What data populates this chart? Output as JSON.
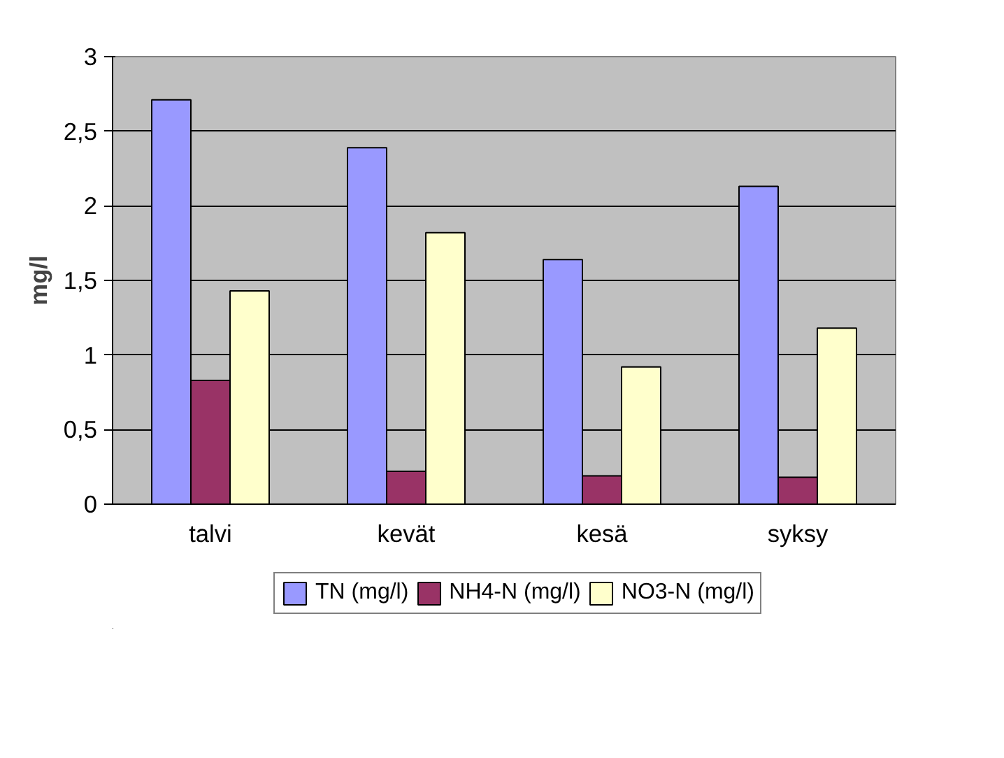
{
  "chart_data": {
    "type": "bar",
    "ylabel": "mg/l",
    "categories": [
      "talvi",
      "kevät",
      "kesä",
      "syksy"
    ],
    "series": [
      {
        "name": "TN (mg/l)",
        "color": "#9999ff",
        "values": [
          2.71,
          2.39,
          1.64,
          2.13
        ]
      },
      {
        "name": "NH4-N (mg/l)",
        "color": "#993366",
        "values": [
          0.83,
          0.22,
          0.19,
          0.18
        ]
      },
      {
        "name": "NO3-N (mg/l)",
        "color": "#ffffcc",
        "values": [
          1.43,
          1.82,
          0.92,
          1.18
        ]
      }
    ],
    "ylim": [
      0,
      3
    ],
    "yticks": [
      0,
      {
        "value": 0.5,
        "label": "0,5"
      },
      1,
      {
        "value": 1.5,
        "label": "1,5"
      },
      2,
      {
        "value": 2.5,
        "label": "2,5"
      },
      3
    ],
    "grid": "y",
    "legend": "bottom"
  }
}
